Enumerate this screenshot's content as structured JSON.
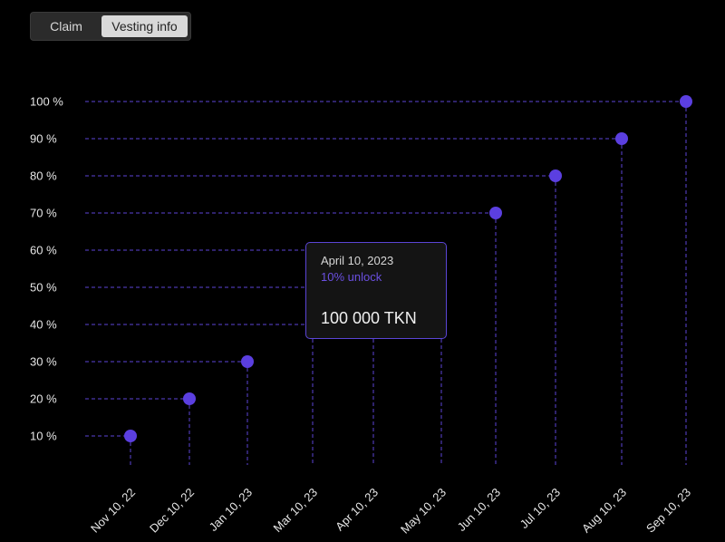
{
  "tabs": [
    {
      "label": "Claim",
      "active": false
    },
    {
      "label": "Vesting info",
      "active": true
    }
  ],
  "chart_data": {
    "type": "scatter",
    "title": "",
    "xlabel": "",
    "ylabel": "",
    "y_tick_labels": [
      "10 %",
      "20 %",
      "30 %",
      "40 %",
      "50 %",
      "60 %",
      "70 %",
      "80 %",
      "90 %",
      "100 %"
    ],
    "x_tick_labels": [
      "Nov 10, 22",
      "Dec 10, 22",
      "Jan 10, 23",
      "Mar 10, 23",
      "Apr 10, 23",
      "May 10, 23",
      "Jun 10, 23",
      "Jul 10, 23",
      "Aug 10, 23",
      "Sep 10, 23"
    ],
    "points": [
      {
        "x": "Nov 10, 22",
        "y": 10
      },
      {
        "x": "Dec 10, 22",
        "y": 20
      },
      {
        "x": "Jan 10, 23",
        "y": 30
      },
      {
        "x": "Jun 10, 23",
        "y": 70
      },
      {
        "x": "Jul 10, 23",
        "y": 80
      },
      {
        "x": "Aug 10, 23",
        "y": 90
      },
      {
        "x": "Sep 10, 23",
        "y": 100
      }
    ],
    "ylim": [
      10,
      100
    ],
    "grid": true,
    "colors": {
      "accent": "#6a4fe0",
      "point": "#5b3fe0",
      "guide": "#5b45d6",
      "background": "#000000"
    }
  },
  "tooltip": {
    "date": "April 10, 2023",
    "unlock": "10% unlock",
    "amount": "100 000 TKN"
  }
}
